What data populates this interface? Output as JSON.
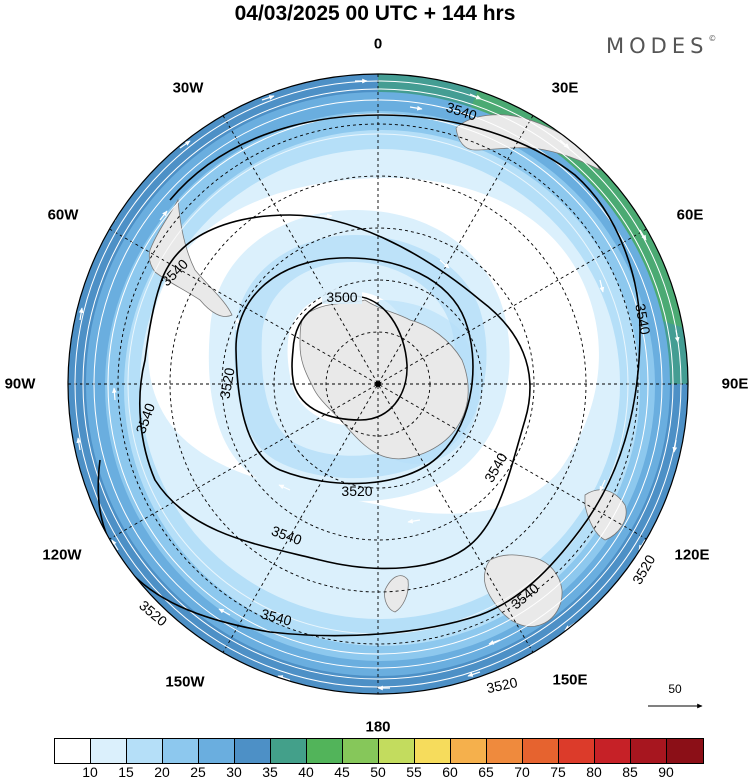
{
  "title": "04/03/2025  00 UTC  + 144 hrs",
  "brand": "MODES",
  "brand_mark": "©",
  "longitude_labels": [
    "0",
    "30E",
    "60E",
    "90E",
    "120E",
    "150E",
    "180",
    "150W",
    "120W",
    "90W",
    "60W",
    "30W"
  ],
  "contour_labels": {
    "c3500": "3500",
    "c3520": "3520",
    "c3540": "3540"
  },
  "reference_vector": {
    "value": "50"
  },
  "colorbar": {
    "colors": [
      "#ffffff",
      "#dbf0fc",
      "#b5dff8",
      "#8dc8ee",
      "#6aaedf",
      "#4d90c6",
      "#43a08a",
      "#52b45a",
      "#86c75a",
      "#c3dc5e",
      "#f6dc5c",
      "#f5b04c",
      "#ef8a3d",
      "#e6632f",
      "#dc3b2a",
      "#c62127",
      "#a7161f",
      "#8b0f17"
    ],
    "labels": [
      "10",
      "15",
      "20",
      "25",
      "30",
      "35",
      "40",
      "45",
      "50",
      "55",
      "60",
      "65",
      "70",
      "75",
      "80",
      "85",
      "90"
    ]
  },
  "map_colors": {
    "land": "#e9e9e9",
    "coast": "#777777"
  }
}
